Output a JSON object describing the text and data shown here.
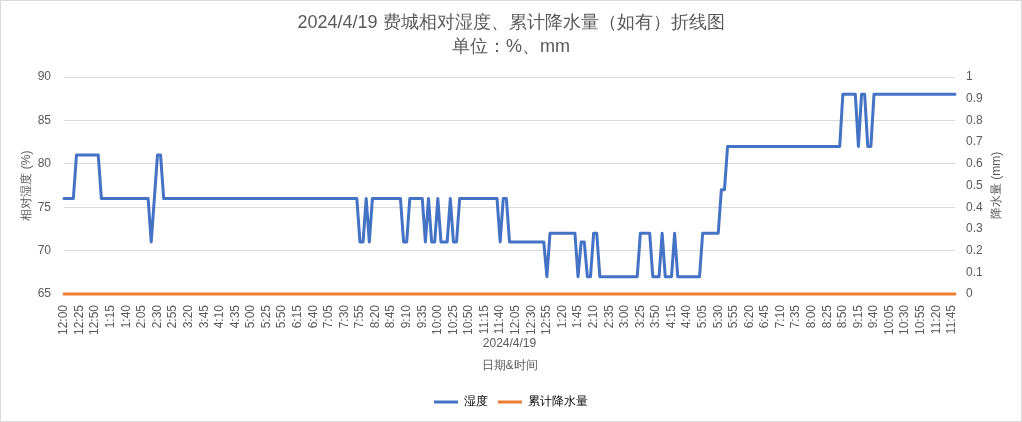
{
  "chart_data": {
    "type": "line",
    "title": "2024/4/19 费城相对湿度、累计降水量（如有）折线图",
    "subtitle": "单位：%、mm",
    "xlabel": "日期&时间",
    "ylabel": "相对湿度 (%)",
    "y2label": "降水量 (mm)",
    "annotations": [
      "2024/4/19"
    ],
    "categories": [
      "12:00",
      null,
      null,
      null,
      null,
      "12:25",
      null,
      null,
      null,
      null,
      "12:50",
      null,
      null,
      null,
      null,
      "1:15",
      null,
      null,
      null,
      null,
      "1:40",
      null,
      null,
      null,
      null,
      "2:05",
      null,
      null,
      null,
      null,
      "2:30",
      null,
      null,
      null,
      null,
      "2:55",
      null,
      null,
      null,
      null,
      "3:20",
      null,
      null,
      null,
      null,
      "3:45",
      null,
      null,
      null,
      null,
      "4:10",
      null,
      null,
      null,
      null,
      "4:35",
      null,
      null,
      null,
      null,
      "5:00",
      null,
      null,
      null,
      null,
      "5:25",
      null,
      null,
      null,
      null,
      "5:50",
      null,
      null,
      null,
      null,
      "6:15",
      null,
      null,
      null,
      null,
      "6:40",
      null,
      null,
      null,
      null,
      "7:05",
      null,
      null,
      null,
      null,
      "7:30",
      null,
      null,
      null,
      null,
      "7:55",
      null,
      null,
      null,
      null,
      "8:20",
      null,
      null,
      null,
      null,
      "8:45",
      null,
      null,
      null,
      null,
      "9:10",
      null,
      null,
      null,
      null,
      "9:35",
      null,
      null,
      null,
      null,
      "10:00",
      null,
      null,
      null,
      null,
      "10:25",
      null,
      null,
      null,
      null,
      "10:50",
      null,
      null,
      null,
      null,
      "11:15",
      null,
      null,
      null,
      null,
      "11:40",
      null,
      null,
      null,
      null,
      "12:05",
      null,
      null,
      null,
      null,
      "12:30",
      null,
      null,
      null,
      null,
      "12:55",
      null,
      null,
      null,
      null,
      "1:20",
      null,
      null,
      null,
      null,
      "1:45",
      null,
      null,
      null,
      null,
      "2:10",
      null,
      null,
      null,
      null,
      "2:35",
      null,
      null,
      null,
      null,
      "3:00",
      null,
      null,
      null,
      null,
      "3:25",
      null,
      null,
      null,
      null,
      "3:50",
      null,
      null,
      null,
      null,
      "4:15",
      null,
      null,
      null,
      null,
      "4:40",
      null,
      null,
      null,
      null,
      "5:05",
      null,
      null,
      null,
      null,
      "5:30",
      null,
      null,
      null,
      null,
      "5:55",
      null,
      null,
      null,
      null,
      "6:20",
      null,
      null,
      null,
      null,
      "6:45",
      null,
      null,
      null,
      null,
      "7:10",
      null,
      null,
      null,
      null,
      "7:35",
      null,
      null,
      null,
      null,
      "8:00",
      null,
      null,
      null,
      null,
      "8:25",
      null,
      null,
      null,
      null,
      "8:50",
      null,
      null,
      null,
      null,
      "9:15",
      null,
      null,
      null,
      null,
      "9:40",
      null,
      null,
      null,
      null,
      "10:05",
      null,
      null,
      null,
      null,
      "10:30",
      null,
      null,
      null,
      null,
      "10:55",
      null,
      null,
      null,
      null,
      "11:20",
      null,
      null,
      null,
      null,
      "11:45",
      null
    ],
    "series": [
      {
        "name": "湿度",
        "color": "#4472c4",
        "values": [
          76,
          76,
          76,
          76,
          81,
          81,
          81,
          81,
          81,
          81,
          81,
          81,
          76,
          76,
          76,
          76,
          76,
          76,
          76,
          76,
          76,
          76,
          76,
          76,
          76,
          76,
          76,
          76,
          71,
          76,
          81,
          81,
          76,
          76,
          76,
          76,
          76,
          76,
          76,
          76,
          76,
          76,
          76,
          76,
          76,
          76,
          76,
          76,
          76,
          76,
          76,
          76,
          76,
          76,
          76,
          76,
          76,
          76,
          76,
          76,
          76,
          76,
          76,
          76,
          76,
          76,
          76,
          76,
          76,
          76,
          76,
          76,
          76,
          76,
          76,
          76,
          76,
          76,
          76,
          76,
          76,
          76,
          76,
          76,
          76,
          76,
          76,
          76,
          76,
          76,
          76,
          76,
          76,
          76,
          76,
          71,
          71,
          76,
          71,
          76,
          76,
          76,
          76,
          76,
          76,
          76,
          76,
          76,
          76,
          71,
          71,
          76,
          76,
          76,
          76,
          76,
          71,
          76,
          71,
          71,
          76,
          71,
          71,
          71,
          76,
          71,
          71,
          76,
          76,
          76,
          76,
          76,
          76,
          76,
          76,
          76,
          76,
          76,
          76,
          76,
          71,
          76,
          76,
          71,
          71,
          71,
          71,
          71,
          71,
          71,
          71,
          71,
          71,
          71,
          71,
          67,
          72,
          72,
          72,
          72,
          72,
          72,
          72,
          72,
          72,
          67,
          71,
          71,
          67,
          67,
          72,
          72,
          67,
          67,
          67,
          67,
          67,
          67,
          67,
          67,
          67,
          67,
          67,
          67,
          67,
          72,
          72,
          72,
          72,
          67,
          67,
          67,
          72,
          67,
          67,
          67,
          72,
          67,
          67,
          67,
          67,
          67,
          67,
          67,
          67,
          72,
          72,
          72,
          72,
          72,
          72,
          77,
          77,
          82,
          82,
          82,
          82,
          82,
          82,
          82,
          82,
          82,
          82,
          82,
          82,
          82,
          82,
          82,
          82,
          82,
          82,
          82,
          82,
          82,
          82,
          82,
          82,
          82,
          82,
          82,
          82,
          82,
          82,
          82,
          82,
          82,
          82,
          82,
          82,
          82,
          88,
          88,
          88,
          88,
          88,
          82,
          88,
          88,
          82,
          82,
          88,
          88,
          88,
          88,
          88,
          88,
          88,
          88,
          88,
          88,
          88,
          88,
          88,
          88,
          88,
          88,
          88,
          88,
          88,
          88,
          88,
          88,
          88,
          88,
          88,
          88,
          88
        ]
      },
      {
        "name": "累计降水量",
        "color": "#ed7d31",
        "axis": "y2",
        "values": [
          0,
          0,
          0,
          0,
          0,
          0,
          0,
          0,
          0,
          0,
          0,
          0,
          0,
          0,
          0,
          0,
          0,
          0,
          0,
          0,
          0,
          0,
          0,
          0,
          0,
          0,
          0,
          0,
          0,
          0,
          0,
          0,
          0,
          0,
          0,
          0,
          0,
          0,
          0,
          0,
          0,
          0,
          0,
          0,
          0,
          0,
          0,
          0,
          0,
          0,
          0,
          0,
          0,
          0,
          0,
          0,
          0,
          0,
          0,
          0,
          0,
          0,
          0,
          0,
          0,
          0,
          0,
          0,
          0,
          0,
          0,
          0,
          0,
          0,
          0,
          0,
          0,
          0,
          0,
          0,
          0,
          0,
          0,
          0,
          0,
          0,
          0,
          0,
          0,
          0,
          0,
          0,
          0,
          0,
          0,
          0,
          0,
          0,
          0,
          0,
          0,
          0,
          0,
          0,
          0,
          0,
          0,
          0,
          0,
          0,
          0,
          0,
          0,
          0,
          0,
          0,
          0,
          0,
          0,
          0,
          0,
          0,
          0,
          0,
          0,
          0,
          0,
          0,
          0,
          0,
          0,
          0,
          0,
          0,
          0,
          0,
          0,
          0,
          0,
          0,
          0,
          0,
          0,
          0,
          0,
          0,
          0,
          0,
          0,
          0,
          0,
          0,
          0,
          0,
          0,
          0,
          0,
          0,
          0,
          0,
          0,
          0,
          0,
          0,
          0,
          0,
          0,
          0,
          0,
          0,
          0,
          0,
          0,
          0,
          0,
          0,
          0,
          0,
          0,
          0,
          0,
          0,
          0,
          0,
          0,
          0,
          0,
          0,
          0,
          0,
          0,
          0,
          0,
          0,
          0,
          0,
          0,
          0,
          0,
          0,
          0,
          0,
          0,
          0,
          0,
          0,
          0,
          0,
          0,
          0,
          0,
          0,
          0,
          0,
          0,
          0,
          0,
          0,
          0,
          0,
          0,
          0,
          0,
          0,
          0,
          0,
          0,
          0,
          0,
          0,
          0,
          0,
          0,
          0,
          0,
          0,
          0,
          0,
          0,
          0,
          0,
          0,
          0,
          0,
          0,
          0,
          0,
          0,
          0,
          0,
          0,
          0,
          0,
          0,
          0,
          0,
          0,
          0,
          0,
          0,
          0,
          0,
          0,
          0,
          0,
          0,
          0,
          0,
          0,
          0,
          0,
          0,
          0,
          0,
          0,
          0,
          0,
          0,
          0,
          0,
          0,
          0,
          0,
          0,
          0,
          0,
          0
        ]
      }
    ],
    "ylim": [
      65,
      90
    ],
    "yticks": [
      65,
      70,
      75,
      80,
      85,
      90
    ],
    "y2lim": [
      0,
      1
    ],
    "y2ticks": [
      0,
      0.1,
      0.2,
      0.3,
      0.4,
      0.5,
      0.6,
      0.7,
      0.8,
      0.9,
      1
    ],
    "grid": "y",
    "legend": "bottom"
  }
}
